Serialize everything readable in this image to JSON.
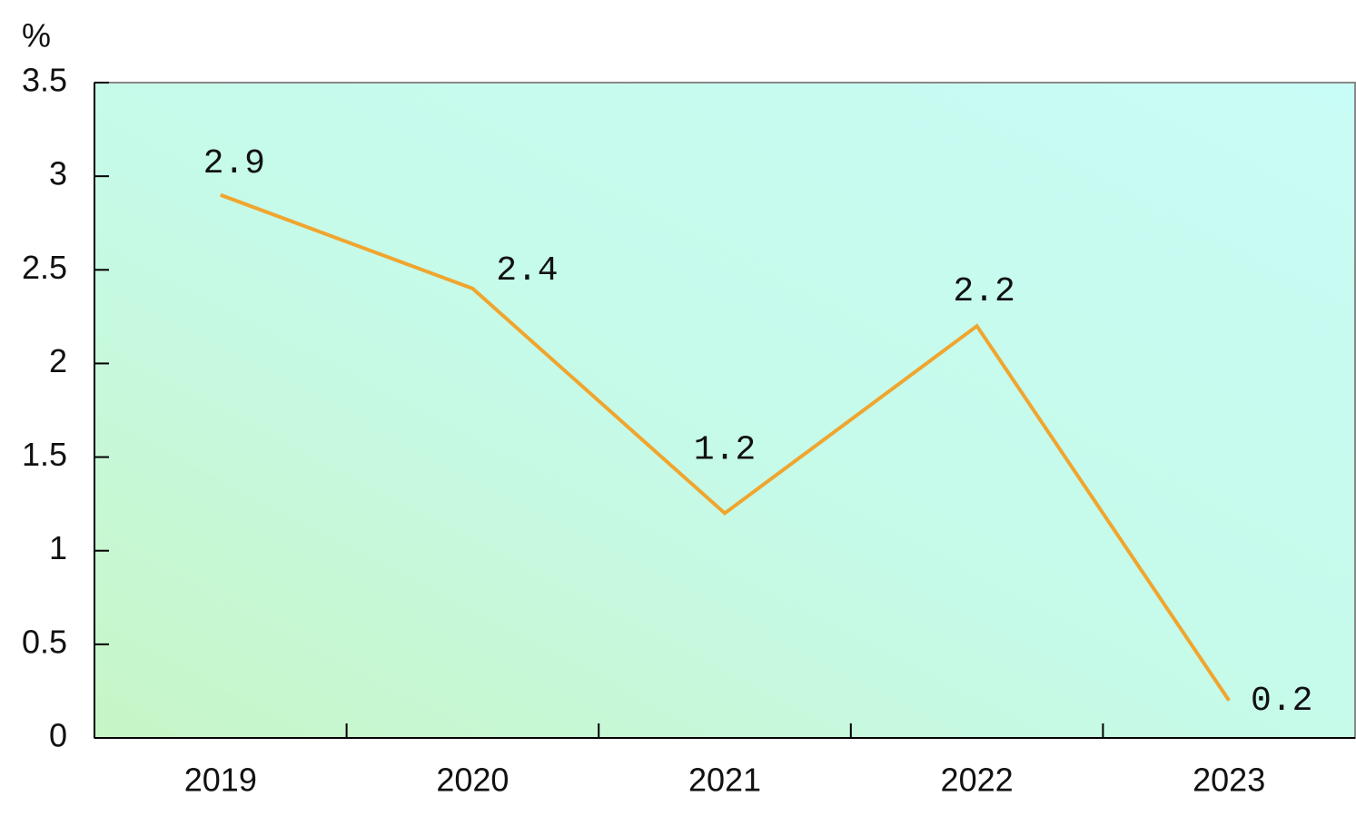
{
  "chart_data": {
    "type": "line",
    "y_label": "%",
    "categories": [
      "2019",
      "2020",
      "2021",
      "2022",
      "2023"
    ],
    "values": [
      2.9,
      2.4,
      1.2,
      2.2,
      0.2
    ],
    "color": "#f0a52e",
    "ylim": [
      0,
      3.5
    ],
    "yticks": [
      0,
      0.5,
      1,
      1.5,
      2,
      2.5,
      3,
      3.5
    ]
  }
}
